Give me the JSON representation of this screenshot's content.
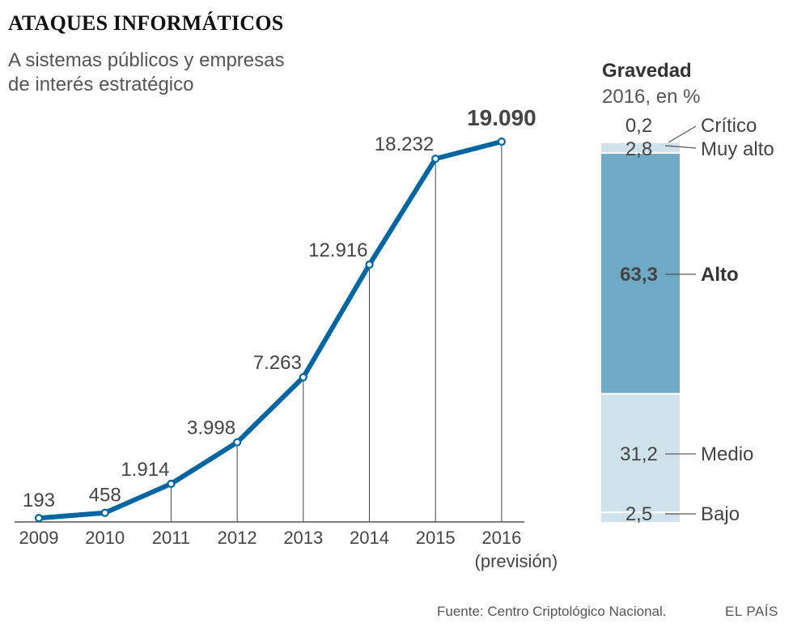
{
  "title": "ATAQUES INFORMÁTICOS",
  "subtitle_lines": [
    "A sistemas públicos y empresas",
    "de interés estratégico"
  ],
  "chart_data": [
    {
      "type": "line",
      "title": "ATAQUES INFORMÁTICOS",
      "subtitle": "A sistemas públicos y empresas de interés estratégico",
      "categories": [
        "2009",
        "2010",
        "2011",
        "2012",
        "2013",
        "2014",
        "2015",
        "2016"
      ],
      "category_notes": {
        "2016": "(previsión)"
      },
      "series": [
        {
          "name": "Ataques",
          "values": [
            193,
            458,
            1914,
            3998,
            7263,
            12916,
            18232,
            19090
          ]
        }
      ],
      "labels": [
        "193",
        "458",
        "1.914",
        "3.998",
        "7.263",
        "12.916",
        "18.232",
        "19.090"
      ],
      "highlight_label": "19.090",
      "ylim": [
        0,
        19090
      ],
      "grid": false,
      "line_color": "#0066a1"
    },
    {
      "type": "bar",
      "stacked": true,
      "title": "Gravedad",
      "subtitle": "2016, en %",
      "segments": [
        {
          "name": "Crítico",
          "value": 0.2,
          "label": "0,2",
          "color": "#cfe1ea",
          "bold": false
        },
        {
          "name": "Muy alto",
          "value": 2.8,
          "label": "2,8",
          "color": "#cfe1ea",
          "bold": false
        },
        {
          "name": "Alto",
          "value": 63.3,
          "label": "63,3",
          "color": "#6ea9c6",
          "bold": true
        },
        {
          "name": "Medio",
          "value": 31.2,
          "label": "31,2",
          "color": "#cfe1ea",
          "bold": false
        },
        {
          "name": "Bajo",
          "value": 2.5,
          "label": "2,5",
          "color": "#cfe1ea",
          "bold": false
        }
      ]
    }
  ],
  "severity": {
    "title": "Gravedad",
    "subtitle": "2016, en %"
  },
  "footer": {
    "source": "Fuente: Centro Criptológico Nacional.",
    "brand": "EL PAÍS"
  }
}
